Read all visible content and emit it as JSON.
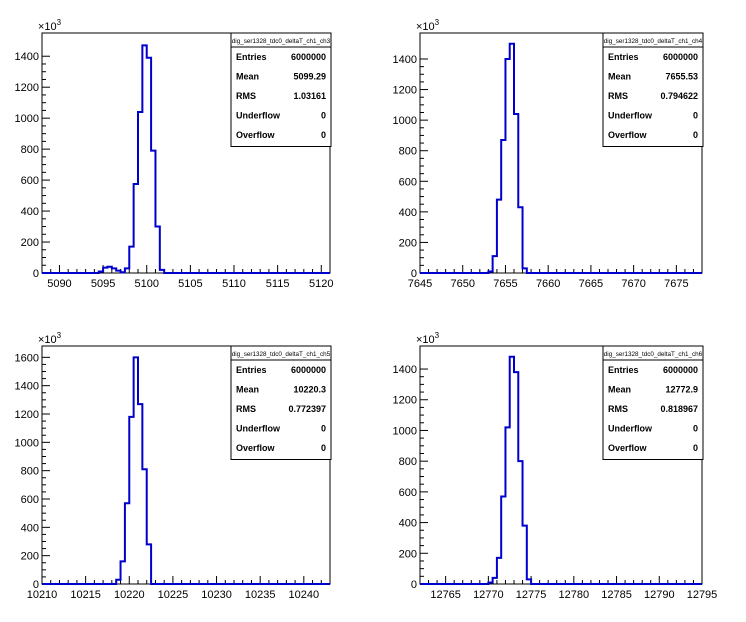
{
  "chart_data": [
    {
      "type": "histogram",
      "title": "dig_ser1328_tdc0_deltaT_ch1_ch3",
      "y_exponent": "3",
      "xlim": [
        5088,
        5121
      ],
      "ylim": [
        0,
        1550
      ],
      "xticks": [
        5090,
        5095,
        5100,
        5105,
        5110,
        5115,
        5120
      ],
      "yticks": [
        0,
        200,
        400,
        600,
        800,
        1000,
        1200,
        1400
      ],
      "bins": {
        "x": [
          5094.5,
          5095.0,
          5095.5,
          5096.0,
          5096.5,
          5097.0,
          5097.5,
          5098.0,
          5098.5,
          5099.0,
          5099.5,
          5100.0,
          5100.5,
          5101.0,
          5101.5
        ],
        "y": [
          10,
          35,
          40,
          30,
          15,
          5,
          30,
          170,
          575,
          1040,
          1470,
          1390,
          790,
          300,
          20
        ]
      },
      "stats": [
        {
          "label": "Entries",
          "value": "6000000"
        },
        {
          "label": "Mean",
          "value": "5099.29"
        },
        {
          "label": "RMS",
          "value": "1.03161"
        },
        {
          "label": "Underflow",
          "value": "0"
        },
        {
          "label": "Overflow",
          "value": "0"
        }
      ],
      "color": "#0000cc"
    },
    {
      "type": "histogram",
      "title": "dig_ser1328_tdc0_deltaT_ch1_ch4",
      "y_exponent": "3",
      "xlim": [
        7645,
        7678
      ],
      "ylim": [
        0,
        1570
      ],
      "xticks": [
        7645,
        7650,
        7655,
        7660,
        7665,
        7670,
        7675
      ],
      "yticks": [
        0,
        200,
        400,
        600,
        800,
        1000,
        1200,
        1400
      ],
      "bins": {
        "x": [
          7653.0,
          7653.5,
          7654.0,
          7654.5,
          7655.0,
          7655.5,
          7656.0,
          7656.5,
          7657.0
        ],
        "y": [
          10,
          110,
          480,
          870,
          1400,
          1500,
          1040,
          430,
          30
        ]
      },
      "stats": [
        {
          "label": "Entries",
          "value": "6000000"
        },
        {
          "label": "Mean",
          "value": "7655.53"
        },
        {
          "label": "RMS",
          "value": "0.794622"
        },
        {
          "label": "Underflow",
          "value": "0"
        },
        {
          "label": "Overflow",
          "value": "0"
        }
      ],
      "color": "#0000cc"
    },
    {
      "type": "histogram",
      "title": "dig_ser1328_tdc0_deltaT_ch1_ch5",
      "y_exponent": "3",
      "xlim": [
        10210,
        10243
      ],
      "ylim": [
        0,
        1680
      ],
      "xticks": [
        10210,
        10215,
        10220,
        10225,
        10230,
        10235,
        10240
      ],
      "yticks": [
        0,
        200,
        400,
        600,
        800,
        1000,
        1200,
        1400,
        1600
      ],
      "bins": {
        "x": [
          10218.5,
          10219.0,
          10219.5,
          10220.0,
          10220.5,
          10221.0,
          10221.5,
          10222.0
        ],
        "y": [
          30,
          160,
          570,
          1180,
          1600,
          1270,
          810,
          280
        ]
      },
      "stats": [
        {
          "label": "Entries",
          "value": "6000000"
        },
        {
          "label": "Mean",
          "value": "10220.3"
        },
        {
          "label": "RMS",
          "value": "0.772397"
        },
        {
          "label": "Underflow",
          "value": "0"
        },
        {
          "label": "Overflow",
          "value": "0"
        }
      ],
      "color": "#0000cc"
    },
    {
      "type": "histogram",
      "title": "dig_ser1328_tdc0_deltaT_ch1_ch6",
      "y_exponent": "3",
      "xlim": [
        12762,
        12795
      ],
      "ylim": [
        0,
        1550
      ],
      "xticks": [
        12765,
        12770,
        12775,
        12780,
        12785,
        12790,
        12795
      ],
      "yticks": [
        0,
        200,
        400,
        600,
        800,
        1000,
        1200,
        1400
      ],
      "bins": {
        "x": [
          12770.0,
          12770.5,
          12771.0,
          12771.5,
          12772.0,
          12772.5,
          12773.0,
          12773.5,
          12774.0,
          12774.5
        ],
        "y": [
          10,
          40,
          170,
          570,
          1020,
          1480,
          1380,
          800,
          380,
          30
        ]
      },
      "stats": [
        {
          "label": "Entries",
          "value": "6000000"
        },
        {
          "label": "Mean",
          "value": "12772.9"
        },
        {
          "label": "RMS",
          "value": "0.818967"
        },
        {
          "label": "Underflow",
          "value": "0"
        },
        {
          "label": "Overflow",
          "value": "0"
        }
      ],
      "color": "#0000cc"
    }
  ]
}
